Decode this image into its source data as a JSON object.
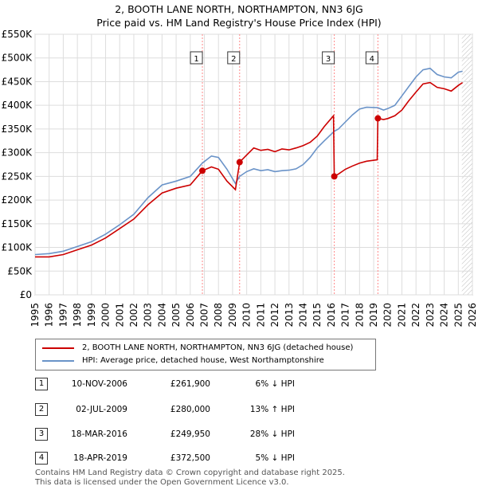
{
  "title_line1": "2, BOOTH LANE NORTH, NORTHAMPTON, NN3 6JG",
  "title_line2": "Price paid vs. HM Land Registry's House Price Index (HPI)",
  "colors": {
    "price": "#cc0000",
    "hpi": "#6a93c8",
    "marker": "#cc0000",
    "grid": "#dddddd",
    "vline": "#ff8888"
  },
  "legend": {
    "price_label": "2, BOOTH LANE NORTH, NORTHAMPTON, NN3 6JG (detached house)",
    "hpi_label": "HPI: Average price, detached house, West Northamptonshire"
  },
  "transactions": [
    {
      "num": "1",
      "date": "10-NOV-2006",
      "price": "£261,900",
      "hpi": "6% ↓ HPI"
    },
    {
      "num": "2",
      "date": "02-JUL-2009",
      "price": "£280,000",
      "hpi": "13% ↑ HPI"
    },
    {
      "num": "3",
      "date": "18-MAR-2016",
      "price": "£249,950",
      "hpi": "28% ↓ HPI"
    },
    {
      "num": "4",
      "date": "18-APR-2019",
      "price": "£372,500",
      "hpi": "5% ↓ HPI"
    }
  ],
  "footer_line1": "Contains HM Land Registry data © Crown copyright and database right 2025.",
  "footer_line2": "This data is licensed under the Open Government Licence v3.0.",
  "chart_data": {
    "type": "line",
    "xlim": [
      1995,
      2026
    ],
    "ylim": [
      0,
      550000
    ],
    "x_ticks": [
      1995,
      1996,
      1997,
      1998,
      1999,
      2000,
      2001,
      2002,
      2003,
      2004,
      2005,
      2006,
      2007,
      2008,
      2009,
      2010,
      2011,
      2012,
      2013,
      2014,
      2015,
      2016,
      2017,
      2018,
      2019,
      2020,
      2021,
      2022,
      2023,
      2024,
      2025,
      2026
    ],
    "y_ticks": [
      0,
      50000,
      100000,
      150000,
      200000,
      250000,
      300000,
      350000,
      400000,
      450000,
      500000,
      550000
    ],
    "y_tick_labels": [
      "£0",
      "£50K",
      "£100K",
      "£150K",
      "£200K",
      "£250K",
      "£300K",
      "£350K",
      "£400K",
      "£450K",
      "£500K",
      "£550K"
    ],
    "grid": true,
    "series": [
      {
        "name": "2, BOOTH LANE NORTH, NORTHAMPTON, NN3 6JG (detached house)",
        "points": [
          [
            1995.0,
            80000
          ],
          [
            1996.0,
            80000
          ],
          [
            1997.0,
            85000
          ],
          [
            1998.0,
            95000
          ],
          [
            1999.0,
            105000
          ],
          [
            2000.0,
            120000
          ],
          [
            2001.0,
            140000
          ],
          [
            2002.0,
            160000
          ],
          [
            2003.0,
            190000
          ],
          [
            2004.0,
            215000
          ],
          [
            2005.0,
            225000
          ],
          [
            2006.0,
            232000
          ],
          [
            2006.86,
            261900
          ],
          [
            2007.5,
            270000
          ],
          [
            2008.0,
            265000
          ],
          [
            2008.6,
            240000
          ],
          [
            2009.2,
            222000
          ],
          [
            2009.5,
            280000
          ],
          [
            2010.0,
            295000
          ],
          [
            2010.5,
            310000
          ],
          [
            2011.0,
            305000
          ],
          [
            2011.5,
            307000
          ],
          [
            2012.0,
            302000
          ],
          [
            2012.5,
            308000
          ],
          [
            2013.0,
            306000
          ],
          [
            2013.5,
            310000
          ],
          [
            2014.0,
            315000
          ],
          [
            2014.5,
            322000
          ],
          [
            2015.0,
            335000
          ],
          [
            2015.5,
            355000
          ],
          [
            2016.15,
            378000
          ],
          [
            2016.21,
            249950
          ],
          [
            2016.5,
            255000
          ],
          [
            2017.0,
            265000
          ],
          [
            2017.5,
            272000
          ],
          [
            2018.0,
            278000
          ],
          [
            2018.5,
            282000
          ],
          [
            2019.25,
            285000
          ],
          [
            2019.3,
            372500
          ],
          [
            2019.7,
            370000
          ],
          [
            2020.0,
            372000
          ],
          [
            2020.5,
            378000
          ],
          [
            2021.0,
            390000
          ],
          [
            2021.5,
            410000
          ],
          [
            2022.0,
            428000
          ],
          [
            2022.5,
            445000
          ],
          [
            2023.0,
            448000
          ],
          [
            2023.5,
            438000
          ],
          [
            2024.0,
            435000
          ],
          [
            2024.5,
            430000
          ],
          [
            2025.0,
            442000
          ],
          [
            2025.3,
            448000
          ]
        ]
      },
      {
        "name": "HPI: Average price, detached house, West Northamptonshire",
        "points": [
          [
            1995.0,
            85000
          ],
          [
            1996.0,
            87000
          ],
          [
            1997.0,
            92000
          ],
          [
            1998.0,
            102000
          ],
          [
            1999.0,
            112000
          ],
          [
            2000.0,
            128000
          ],
          [
            2001.0,
            148000
          ],
          [
            2002.0,
            170000
          ],
          [
            2003.0,
            205000
          ],
          [
            2004.0,
            232000
          ],
          [
            2005.0,
            240000
          ],
          [
            2006.0,
            250000
          ],
          [
            2006.86,
            278000
          ],
          [
            2007.5,
            293000
          ],
          [
            2008.0,
            290000
          ],
          [
            2008.6,
            265000
          ],
          [
            2009.2,
            235000
          ],
          [
            2009.5,
            250000
          ],
          [
            2010.0,
            260000
          ],
          [
            2010.5,
            266000
          ],
          [
            2011.0,
            262000
          ],
          [
            2011.5,
            264000
          ],
          [
            2012.0,
            260000
          ],
          [
            2012.5,
            262000
          ],
          [
            2013.0,
            263000
          ],
          [
            2013.5,
            266000
          ],
          [
            2014.0,
            275000
          ],
          [
            2014.5,
            290000
          ],
          [
            2015.0,
            310000
          ],
          [
            2015.5,
            325000
          ],
          [
            2016.2,
            345000
          ],
          [
            2016.5,
            350000
          ],
          [
            2017.0,
            365000
          ],
          [
            2017.5,
            380000
          ],
          [
            2018.0,
            392000
          ],
          [
            2018.5,
            396000
          ],
          [
            2019.3,
            395000
          ],
          [
            2019.7,
            390000
          ],
          [
            2020.0,
            393000
          ],
          [
            2020.5,
            400000
          ],
          [
            2021.0,
            420000
          ],
          [
            2021.5,
            440000
          ],
          [
            2022.0,
            460000
          ],
          [
            2022.5,
            475000
          ],
          [
            2023.0,
            478000
          ],
          [
            2023.5,
            465000
          ],
          [
            2024.0,
            460000
          ],
          [
            2024.5,
            458000
          ],
          [
            2025.0,
            470000
          ],
          [
            2025.3,
            472000
          ]
        ]
      }
    ],
    "sales": [
      {
        "label": "1",
        "x": 2006.86,
        "y": 261900
      },
      {
        "label": "2",
        "x": 2009.5,
        "y": 280000
      },
      {
        "label": "3",
        "x": 2016.21,
        "y": 249950
      },
      {
        "label": "4",
        "x": 2019.3,
        "y": 372500
      }
    ],
    "projection_from": 2025.25
  }
}
